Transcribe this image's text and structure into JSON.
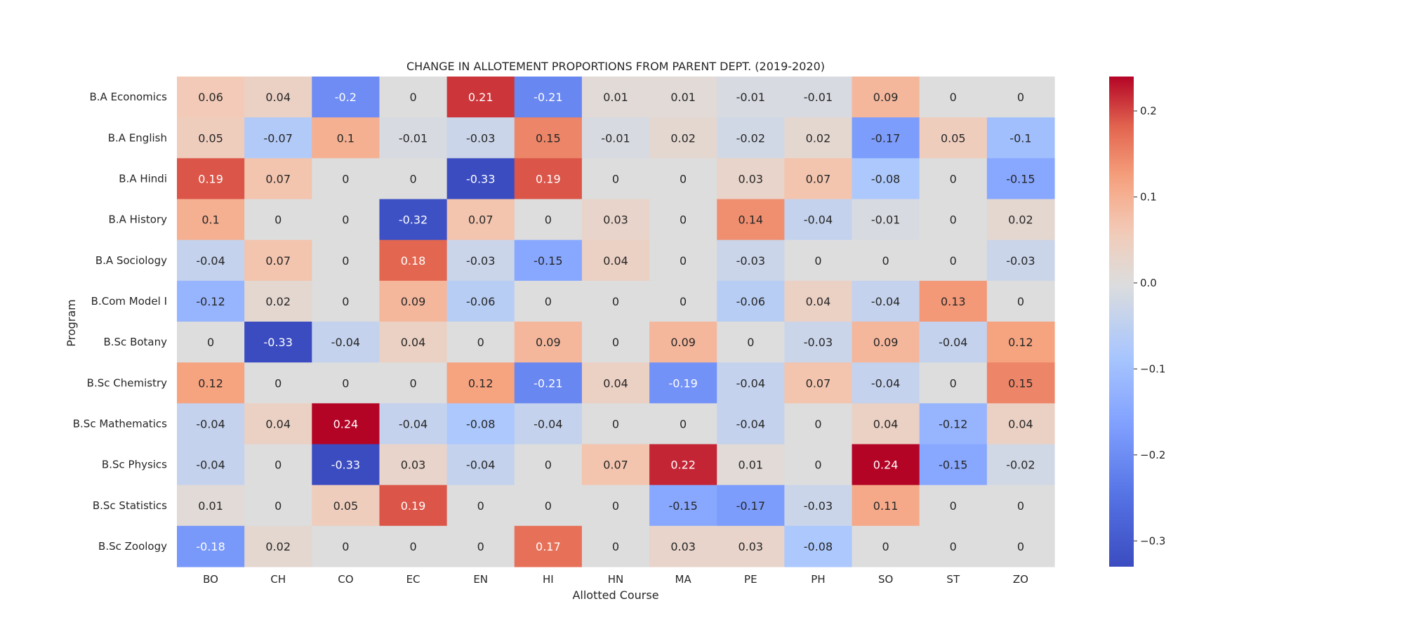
{
  "chart_data": {
    "type": "heatmap",
    "title": "CHANGE IN ALLOTEMENT PROPORTIONS FROM PARENT DEPT. (2019-2020)",
    "xlabel": "Allotted Course",
    "ylabel": "Program",
    "x_categories": [
      "BO",
      "CH",
      "CO",
      "EC",
      "EN",
      "HI",
      "HN",
      "MA",
      "PE",
      "PH",
      "SO",
      "ST",
      "ZO"
    ],
    "y_categories": [
      "B.A Economics",
      "B.A English",
      "B.A Hindi",
      "B.A History",
      "B.A Sociology",
      "B.Com Model I",
      "B.Sc Botany",
      "B.Sc Chemistry",
      "B.Sc Mathematics",
      "B.Sc Physics",
      "B.Sc Statistics",
      "B.Sc Zoology"
    ],
    "values": [
      [
        0.06,
        0.04,
        -0.2,
        0,
        0.21,
        -0.21,
        0.01,
        0.01,
        -0.01,
        -0.01,
        0.09,
        0,
        0
      ],
      [
        0.05,
        -0.07,
        0.1,
        -0.01,
        -0.03,
        0.15,
        -0.01,
        0.02,
        -0.02,
        0.02,
        -0.17,
        0.05,
        -0.1
      ],
      [
        0.19,
        0.07,
        0,
        0,
        -0.33,
        0.19,
        0,
        0,
        0.03,
        0.07,
        -0.08,
        0,
        -0.15
      ],
      [
        0.1,
        0,
        0,
        -0.32,
        0.07,
        0,
        0.03,
        0,
        0.14,
        -0.04,
        -0.01,
        0,
        0.02
      ],
      [
        -0.04,
        0.07,
        0,
        0.18,
        -0.03,
        -0.15,
        0.04,
        0,
        -0.03,
        0,
        0,
        0,
        -0.03
      ],
      [
        -0.12,
        0.02,
        0,
        0.09,
        -0.06,
        0,
        0,
        0,
        -0.06,
        0.04,
        -0.04,
        0.13,
        0
      ],
      [
        0,
        -0.33,
        -0.04,
        0.04,
        0,
        0.09,
        0,
        0.09,
        0,
        -0.03,
        0.09,
        -0.04,
        0.12
      ],
      [
        0.12,
        0,
        0,
        0,
        0.12,
        -0.21,
        0.04,
        -0.19,
        -0.04,
        0.07,
        -0.04,
        0,
        0.15
      ],
      [
        -0.04,
        0.04,
        0.24,
        -0.04,
        -0.08,
        -0.04,
        0,
        0,
        -0.04,
        0,
        0.04,
        -0.12,
        0.04
      ],
      [
        -0.04,
        0,
        -0.33,
        0.03,
        -0.04,
        0,
        0.07,
        0.22,
        0.01,
        0,
        0.24,
        -0.15,
        -0.02
      ],
      [
        0.01,
        0,
        0.05,
        0.19,
        0,
        0,
        0,
        -0.15,
        -0.17,
        -0.03,
        0.11,
        0,
        0
      ],
      [
        -0.18,
        0.02,
        0,
        0,
        0,
        0.17,
        0,
        0.03,
        0.03,
        -0.08,
        0,
        0,
        0
      ]
    ],
    "colormap": "coolwarm",
    "vmin": -0.33,
    "vmax": 0.24,
    "colorbar_ticks": [
      0.2,
      0.1,
      0.0,
      -0.1,
      -0.2,
      -0.3
    ],
    "colorbar_tick_labels": [
      "0.2",
      "0.1",
      "0.0",
      "−0.1",
      "−0.2",
      "−0.3"
    ],
    "grid": false,
    "legend": "colorbar-right"
  }
}
